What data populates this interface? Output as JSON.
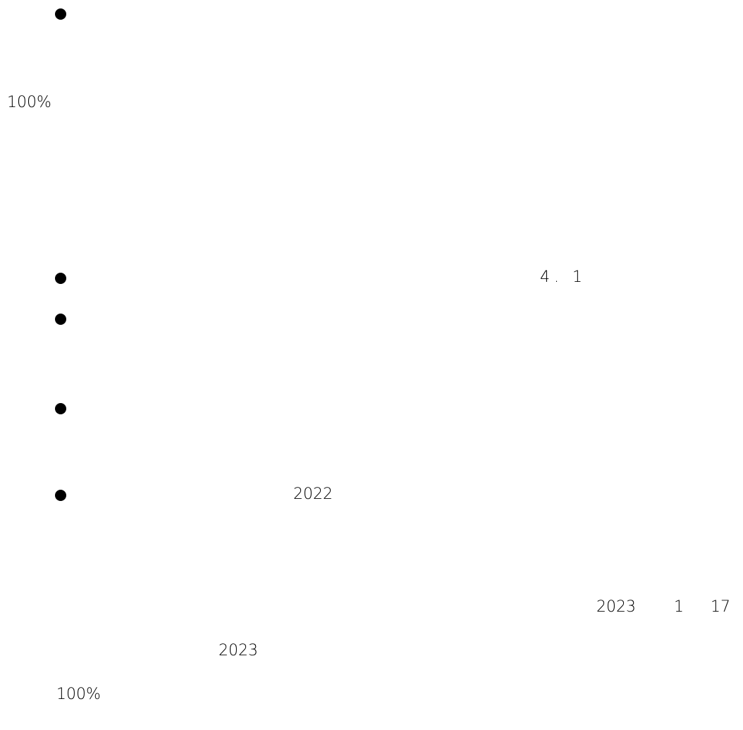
{
  "document": {
    "paragraph_1": {
      "percent": "100%"
    },
    "bullets": [
      {
        "number": ""
      },
      {
        "number": "4. 1"
      },
      {
        "number": ""
      },
      {
        "number": ""
      },
      {
        "number": "2022"
      }
    ],
    "footer": {
      "year_a": "2023",
      "month": "1",
      "day": "17",
      "year_b": "2023",
      "percent": "100%"
    }
  }
}
